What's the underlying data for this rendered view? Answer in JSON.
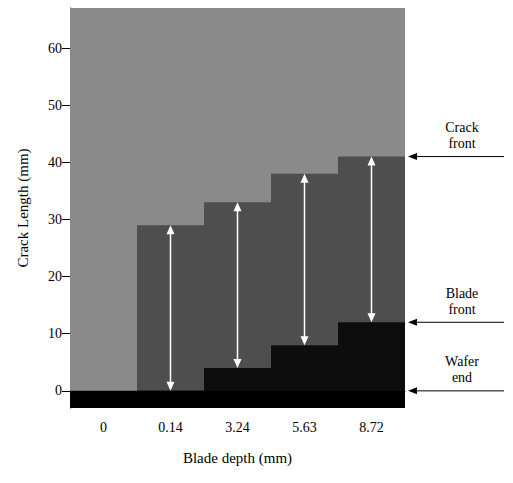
{
  "chart_data": {
    "type": "image_strips",
    "x_label": "Blade depth (mm)",
    "y_label": "Crack Length (mm)",
    "categories": [
      "0",
      "0.14",
      "3.24",
      "5.63",
      "8.72"
    ],
    "color": "#8a8a8a",
    "series": [
      {
        "name": "Wafer end",
        "color": "#000000",
        "values": [
          0,
          0,
          0,
          0,
          0
        ]
      },
      {
        "name": "Blade front",
        "color": "#0d0d0d",
        "values": [
          null,
          0,
          4,
          8,
          12
        ]
      },
      {
        "name": "Crack front",
        "color": "#4e4e4e",
        "values": [
          null,
          29,
          33,
          38,
          41
        ]
      }
    ],
    "ylim": [
      -3,
      67
    ],
    "yticks": [
      0,
      10,
      20,
      30,
      40,
      50,
      60
    ],
    "grid": false,
    "tick_labels": true
  }
}
